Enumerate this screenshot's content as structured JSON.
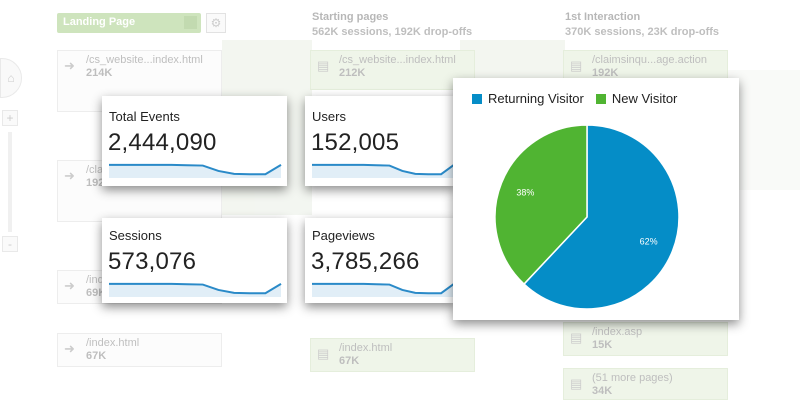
{
  "background": {
    "landing_select": "Landing Page",
    "columns": [
      {
        "title": "Starting pages",
        "subtitle": "562K sessions, 192K drop-offs"
      },
      {
        "title": "1st Interaction",
        "subtitle": "370K sessions, 23K drop-offs"
      }
    ],
    "landing_nodes": [
      {
        "path": "/cs_website...index.html",
        "count": "214K"
      },
      {
        "path": "/cla",
        "count": "192"
      },
      {
        "path": "/ind",
        "count": "69K"
      },
      {
        "path": "/index.html",
        "count": "67K"
      }
    ],
    "starting_nodes": [
      {
        "path": "/cs_website...index.html",
        "count": "212K"
      },
      {
        "path": "/index.html",
        "count": "67K"
      }
    ],
    "interaction_nodes": [
      {
        "path": "/claimsinqu...age.action",
        "count": "192K"
      },
      {
        "path": "/index.asp",
        "count": "15K"
      },
      {
        "path": "(51 more pages)",
        "count": "34K"
      }
    ]
  },
  "metrics": [
    {
      "label": "Total Events",
      "value": "2,444,090"
    },
    {
      "label": "Users",
      "value": "152,005"
    },
    {
      "label": "Sessions",
      "value": "573,076"
    },
    {
      "label": "Pageviews",
      "value": "3,785,266"
    }
  ],
  "sparkline_trend": [
    0.62,
    0.62,
    0.62,
    0.62,
    0.62,
    0.6,
    0.58,
    0.28,
    0.12,
    0.1,
    0.1,
    0.62
  ],
  "chart_data": {
    "type": "pie",
    "title": "",
    "legend_position": "top",
    "slices": [
      {
        "name": "Returning Visitor",
        "value": 62,
        "label": "62%",
        "color": "#058dc7"
      },
      {
        "name": "New Visitor",
        "value": 38,
        "label": "38%",
        "color": "#50b432"
      }
    ]
  },
  "colors": {
    "accent_line": "#2a8ac8",
    "accent_fill": "#e1eef7",
    "returning": "#058dc7",
    "new": "#50b432"
  }
}
